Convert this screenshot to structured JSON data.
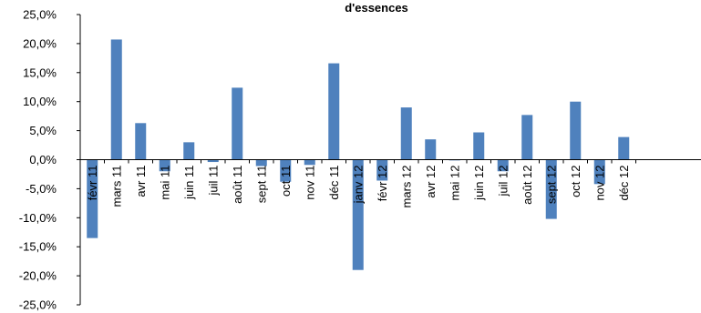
{
  "chart_data": {
    "type": "bar",
    "title": "d'essences",
    "xlabel": "",
    "ylabel": "",
    "ylim": [
      -25,
      25
    ],
    "y_ticks": [
      25,
      20,
      15,
      10,
      5,
      0,
      -5,
      -10,
      -15,
      -20,
      -25
    ],
    "y_tick_labels": [
      "25,0%",
      "20,0%",
      "15,0%",
      "10,0%",
      "5,0%",
      "0,0%",
      "-5,0%",
      "-10,0%",
      "-15,0%",
      "-20,0%",
      "-25,0%"
    ],
    "grid": false,
    "legend": "none",
    "bar_color": "#4f81bd",
    "categories": [
      "févr 11",
      "mars 11",
      "avr 11",
      "mai 11",
      "juin 11",
      "juil 11",
      "août 11",
      "sept 11",
      "oct 11",
      "nov 11",
      "déc 11",
      "janv 12",
      "févr 12",
      "mars 12",
      "avr 12",
      "mai 12",
      "juin 12",
      "juil 12",
      "août 12",
      "sept 12",
      "oct 12",
      "nov 12",
      "déc 12"
    ],
    "values": [
      -13.5,
      20.7,
      6.3,
      -2.0,
      3.0,
      -0.4,
      12.4,
      -1.1,
      -3.8,
      -0.9,
      16.6,
      -19.0,
      -3.6,
      9.0,
      3.5,
      -0.1,
      4.7,
      -2.0,
      7.7,
      -10.2,
      10.0,
      -4.2,
      3.9
    ]
  }
}
